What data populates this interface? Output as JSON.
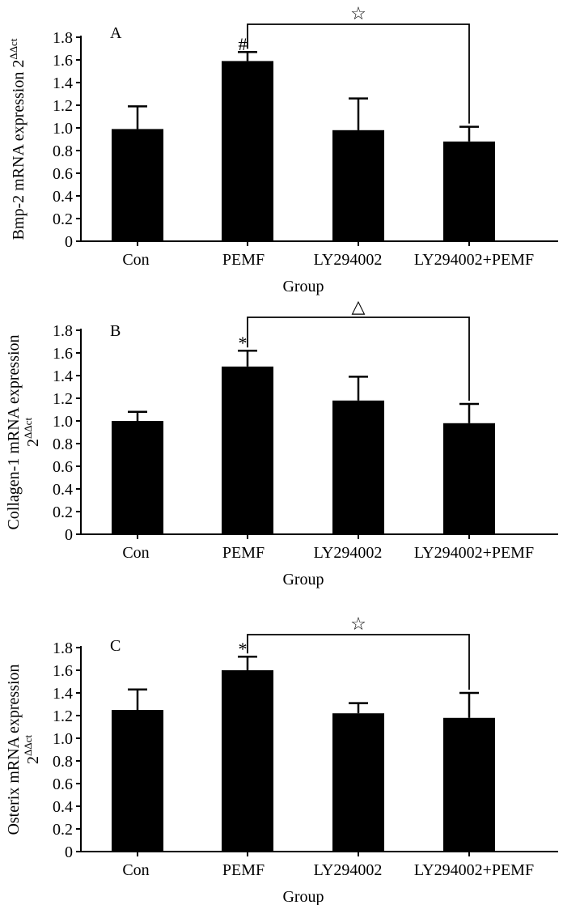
{
  "chart_data": [
    {
      "type": "bar",
      "panel": "A",
      "categories": [
        "Con",
        "PEMF",
        "LY294002",
        "LY294002+PEMF"
      ],
      "values": [
        0.99,
        1.59,
        0.98,
        0.88
      ],
      "errors": [
        0.2,
        0.08,
        0.28,
        0.13
      ],
      "bar_markers": [
        "",
        "#",
        "",
        ""
      ],
      "comparison": {
        "from": 1,
        "to": 3,
        "symbol": "☆"
      },
      "xlabel": "Group",
      "ylabel": "Bmp-2 mRNA expression 2",
      "ylabel_sup": "ΔΔct",
      "ylim": [
        0,
        1.8
      ],
      "yticks": [
        "0",
        "0.2",
        "0.4",
        "0.6",
        "0.8",
        "1.0",
        "1.2",
        "1.4",
        "1.6",
        "1.8"
      ]
    },
    {
      "type": "bar",
      "panel": "B",
      "categories": [
        "Con",
        "PEMF",
        "LY294002",
        "LY294002+PEMF"
      ],
      "values": [
        1.0,
        1.48,
        1.18,
        0.98
      ],
      "errors": [
        0.08,
        0.14,
        0.21,
        0.17
      ],
      "bar_markers": [
        "",
        "*",
        "",
        ""
      ],
      "comparison": {
        "from": 1,
        "to": 3,
        "symbol": "△"
      },
      "xlabel": "Group",
      "ylabel": "Collagen-1 mRNA expression",
      "ylabel_line2": "2",
      "ylabel_sup": "ΔΔct",
      "ylim": [
        0,
        1.8
      ],
      "yticks": [
        "0",
        "0.2",
        "0.4",
        "0.6",
        "0.8",
        "1.0",
        "1.2",
        "1.4",
        "1.6",
        "1.8"
      ]
    },
    {
      "type": "bar",
      "panel": "C",
      "categories": [
        "Con",
        "PEMF",
        "LY294002",
        "LY294002+PEMF"
      ],
      "values": [
        1.25,
        1.6,
        1.22,
        1.18
      ],
      "errors": [
        0.18,
        0.12,
        0.09,
        0.22
      ],
      "bar_markers": [
        "",
        "*",
        "",
        ""
      ],
      "comparison": {
        "from": 1,
        "to": 3,
        "symbol": "☆"
      },
      "xlabel": "Group",
      "ylabel": "Osterix mRNA expression",
      "ylabel_line2": "2",
      "ylabel_sup": "ΔΔct",
      "ylim": [
        0,
        1.8
      ],
      "yticks": [
        "0",
        "0.2",
        "0.4",
        "0.6",
        "0.8",
        "1.0",
        "1.2",
        "1.4",
        "1.6",
        "1.8"
      ]
    }
  ]
}
